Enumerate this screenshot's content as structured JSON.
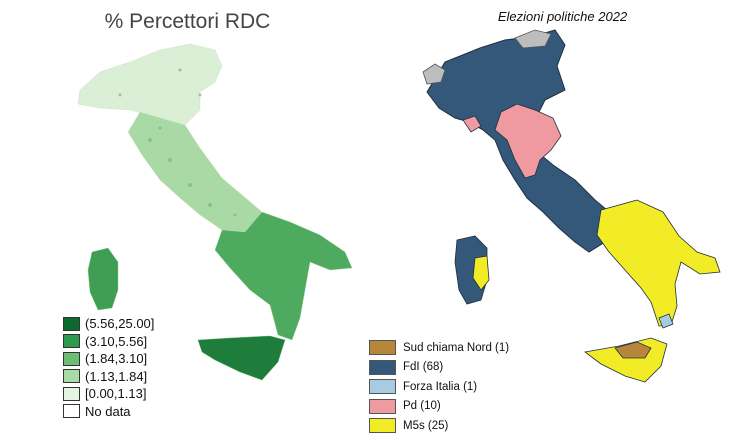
{
  "left_map": {
    "title": "% Percettori RDC",
    "legend": [
      {
        "label": "(5.56,25.00]",
        "color": "#0b6b2e"
      },
      {
        "label": "(3.10,5.56]",
        "color": "#2e9a4e"
      },
      {
        "label": "(1.84,3.10]",
        "color": "#6cbf72"
      },
      {
        "label": "(1.13,1.84]",
        "color": "#a9d9a4"
      },
      {
        "label": "[0.00,1.13]",
        "color": "#e6f4e2"
      },
      {
        "label": "No data",
        "color": "#ffffff"
      }
    ]
  },
  "right_map": {
    "title": "Elezioni politiche 2022",
    "legend": [
      {
        "label": "Sud chiama Nord (1)",
        "color": "#b8863b"
      },
      {
        "label": "FdI (68)",
        "color": "#34587a"
      },
      {
        "label": "Forza Italia (1)",
        "color": "#a7cbe3"
      },
      {
        "label": "Pd (10)",
        "color": "#ef9aa0"
      },
      {
        "label": "M5s (25)",
        "color": "#f2ec26"
      }
    ]
  }
}
